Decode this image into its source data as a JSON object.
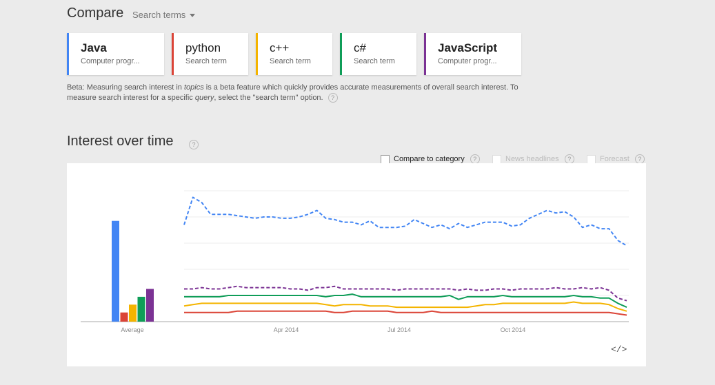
{
  "header": {
    "title": "Compare",
    "search_terms_label": "Search terms"
  },
  "terms": [
    {
      "name": "Java",
      "type": "Computer progr...",
      "color": "#4285f4",
      "bold": true
    },
    {
      "name": "python",
      "type": "Search term",
      "color": "#db4437",
      "bold": false
    },
    {
      "name": "c++",
      "type": "Search term",
      "color": "#f4b400",
      "bold": false
    },
    {
      "name": "c#",
      "type": "Search term",
      "color": "#0f9d58",
      "bold": false
    },
    {
      "name": "JavaScript",
      "type": "Computer progr...",
      "color": "#7b3294",
      "bold": true
    }
  ],
  "beta_note": {
    "p1": "Beta: Measuring search interest in ",
    "em1": "topics",
    "p2": " is a beta feature which quickly provides accurate measurements of overall search interest. To measure search interest for a specific ",
    "em2": "query",
    "p3": ", select the \"search term\" option."
  },
  "section": {
    "title": "Interest over time",
    "help": "?"
  },
  "options": {
    "compare_to_category": "Compare to category",
    "news_headlines": "News headlines",
    "forecast": "Forecast"
  },
  "embed_label": "</>",
  "chart_data": {
    "type": "line",
    "x_labels": [
      "Apr 2014",
      "Jul 2014",
      "Oct 2014"
    ],
    "average_label": "Average",
    "ylim": [
      0,
      100
    ],
    "grid": true,
    "averages": [
      {
        "name": "Java",
        "value": 77,
        "color": "#4285f4"
      },
      {
        "name": "python",
        "value": 7,
        "color": "#db4437"
      },
      {
        "name": "c++",
        "value": 13,
        "color": "#f4b400"
      },
      {
        "name": "c#",
        "value": 19,
        "color": "#0f9d58"
      },
      {
        "name": "JavaScript",
        "value": 25,
        "color": "#7b3294"
      }
    ],
    "series": [
      {
        "name": "Java",
        "color": "#4285f4",
        "dashed": true,
        "values": [
          74,
          95,
          91,
          82,
          82,
          82,
          81,
          80,
          79,
          80,
          80,
          79,
          79,
          80,
          82,
          85,
          79,
          78,
          76,
          76,
          74,
          77,
          72,
          72,
          72,
          73,
          78,
          75,
          72,
          74,
          71,
          75,
          72,
          74,
          76,
          76,
          76,
          73,
          74,
          79,
          82,
          85,
          83,
          84,
          80,
          72,
          74,
          71,
          71,
          62,
          58
        ]
      },
      {
        "name": "python",
        "color": "#db4437",
        "dashed": false,
        "values": [
          7,
          7,
          7,
          7,
          7,
          7,
          8,
          8,
          8,
          8,
          8,
          8,
          8,
          8,
          8,
          8,
          8,
          7,
          7,
          8,
          8,
          8,
          8,
          8,
          7,
          7,
          7,
          7,
          8,
          7,
          7,
          7,
          7,
          7,
          7,
          7,
          7,
          7,
          7,
          7,
          7,
          7,
          7,
          7,
          7,
          7,
          7,
          7,
          7,
          6,
          5
        ]
      },
      {
        "name": "c++",
        "color": "#f4b400",
        "dashed": false,
        "values": [
          12,
          13,
          14,
          14,
          14,
          14,
          14,
          14,
          14,
          14,
          14,
          14,
          14,
          14,
          14,
          14,
          13,
          12,
          13,
          13,
          13,
          12,
          12,
          12,
          11,
          11,
          11,
          11,
          11,
          11,
          11,
          11,
          11,
          12,
          13,
          13,
          14,
          14,
          14,
          14,
          14,
          14,
          14,
          14,
          15,
          14,
          14,
          14,
          13,
          10,
          8
        ]
      },
      {
        "name": "c#",
        "color": "#0f9d58",
        "dashed": false,
        "values": [
          19,
          19,
          19,
          19,
          19,
          20,
          20,
          20,
          20,
          20,
          20,
          20,
          20,
          20,
          20,
          20,
          19,
          20,
          20,
          21,
          19,
          19,
          19,
          19,
          19,
          19,
          19,
          19,
          19,
          19,
          20,
          17,
          19,
          19,
          19,
          19,
          20,
          19,
          19,
          19,
          19,
          19,
          19,
          19,
          20,
          19,
          19,
          18,
          18,
          14,
          11
        ]
      },
      {
        "name": "JavaScript",
        "color": "#7b3294",
        "dashed": true,
        "values": [
          25,
          25,
          26,
          25,
          25,
          26,
          27,
          26,
          26,
          26,
          26,
          26,
          25,
          25,
          24,
          26,
          26,
          27,
          25,
          25,
          25,
          25,
          25,
          25,
          24,
          25,
          25,
          25,
          25,
          25,
          25,
          24,
          25,
          24,
          24,
          25,
          25,
          24,
          25,
          25,
          25,
          25,
          26,
          25,
          25,
          26,
          25,
          26,
          24,
          18,
          16
        ]
      }
    ]
  }
}
